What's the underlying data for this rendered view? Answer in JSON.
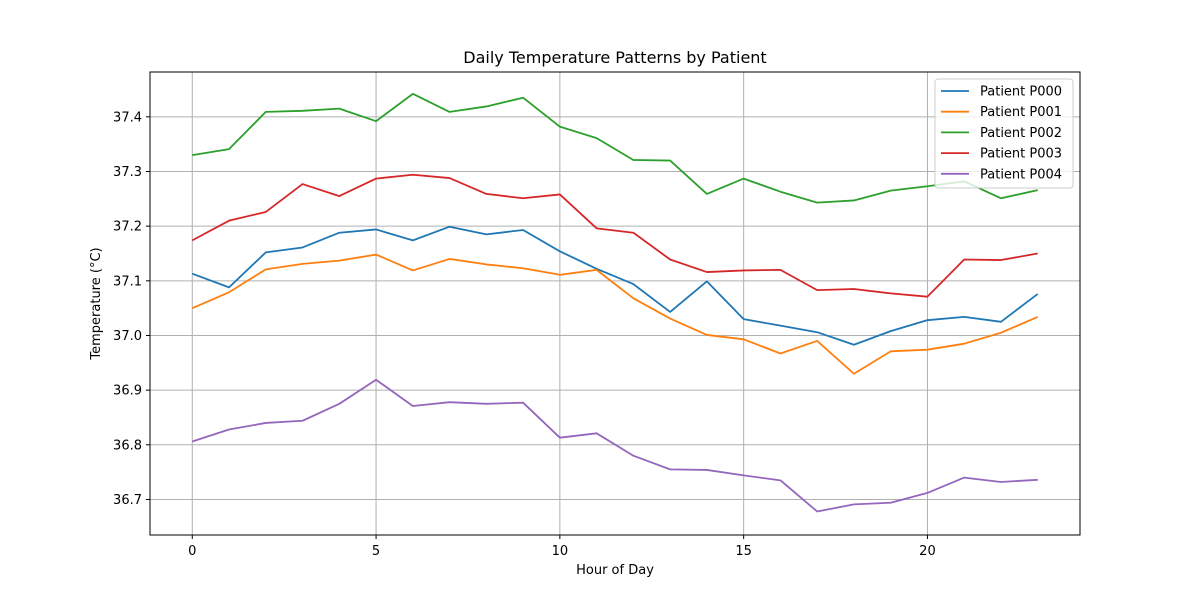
{
  "chart_data": {
    "type": "line",
    "title": "Daily Temperature Patterns by Patient",
    "xlabel": "Hour of Day",
    "ylabel": "Temperature (°C)",
    "xlim": [
      -1.15,
      24.15
    ],
    "ylim": [
      36.635,
      37.482
    ],
    "xticks": [
      0,
      5,
      10,
      15,
      20
    ],
    "yticks": [
      36.7,
      36.8,
      36.9,
      37.0,
      37.1,
      37.2,
      37.3,
      37.4
    ],
    "grid": true,
    "legend_position": "top-right",
    "x": [
      0,
      1,
      2,
      3,
      4,
      5,
      6,
      7,
      8,
      9,
      10,
      11,
      12,
      13,
      14,
      15,
      16,
      17,
      18,
      19,
      20,
      21,
      22,
      23
    ],
    "series": [
      {
        "name": "Patient P000",
        "color": "#1f77b4",
        "values": [
          37.113,
          37.088,
          37.152,
          37.161,
          37.188,
          37.194,
          37.174,
          37.199,
          37.185,
          37.193,
          37.154,
          37.122,
          37.094,
          37.043,
          37.099,
          37.03,
          37.018,
          37.006,
          36.983,
          37.008,
          37.028,
          37.034,
          37.025,
          37.076
        ]
      },
      {
        "name": "Patient P001",
        "color": "#ff7f0e",
        "values": [
          37.05,
          37.079,
          37.121,
          37.131,
          37.137,
          37.148,
          37.119,
          37.14,
          37.13,
          37.123,
          37.111,
          37.12,
          37.068,
          37.031,
          37.001,
          36.993,
          36.967,
          36.99,
          36.93,
          36.971,
          36.974,
          36.985,
          37.005,
          37.034
        ]
      },
      {
        "name": "Patient P002",
        "color": "#2ca02c",
        "values": [
          37.33,
          37.341,
          37.409,
          37.411,
          37.415,
          37.392,
          37.442,
          37.409,
          37.419,
          37.435,
          37.382,
          37.361,
          37.321,
          37.32,
          37.259,
          37.287,
          37.263,
          37.243,
          37.247,
          37.265,
          37.273,
          37.282,
          37.251,
          37.266
        ]
      },
      {
        "name": "Patient P003",
        "color": "#d62728",
        "values": [
          37.174,
          37.21,
          37.226,
          37.277,
          37.255,
          37.287,
          37.294,
          37.288,
          37.259,
          37.251,
          37.258,
          37.196,
          37.188,
          37.139,
          37.116,
          37.119,
          37.12,
          37.083,
          37.085,
          37.077,
          37.071,
          37.139,
          37.138,
          37.15
        ]
      },
      {
        "name": "Patient P004",
        "color": "#9467bd",
        "values": [
          36.806,
          36.828,
          36.84,
          36.844,
          36.875,
          36.919,
          36.871,
          36.878,
          36.875,
          36.877,
          36.813,
          36.821,
          36.78,
          36.755,
          36.754,
          36.744,
          36.735,
          36.678,
          36.691,
          36.694,
          36.712,
          36.74,
          36.732,
          36.736
        ]
      }
    ]
  }
}
